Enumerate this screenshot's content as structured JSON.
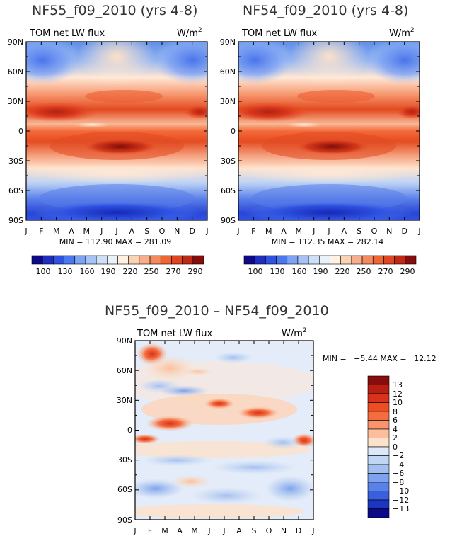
{
  "charts": [
    {
      "title": "NF55_f09_2010 (yrs 4-8)",
      "field": "TOM net LW flux",
      "units": "W/m",
      "units_sup": "2",
      "stats": "MIN = 112.90 MAX = 281.09"
    },
    {
      "title": "NF54_f09_2010 (yrs 4-8)",
      "field": "TOM net LW flux",
      "units": "W/m",
      "units_sup": "2",
      "stats": "MIN = 112.35 MAX = 282.14"
    },
    {
      "title": "NF55_f09_2010 – NF54_f09_2010",
      "field": "TOM net LW flux",
      "units": "W/m",
      "units_sup": "2",
      "stats": "MIN =   −5.44 MAX =   12.12"
    }
  ],
  "chart_data": [
    {
      "type": "heatmap",
      "title": "NF55_f09_2010 (yrs 4-8)",
      "subtitle": "TOM net LW flux",
      "units": "W/m2",
      "x_ticks": [
        "J",
        "F",
        "M",
        "A",
        "M",
        "J",
        "J",
        "A",
        "S",
        "O",
        "N",
        "D",
        "J"
      ],
      "y_ticks": [
        "90N",
        "60N",
        "30N",
        "0",
        "30S",
        "60S",
        "90S"
      ],
      "ylim": [
        -90,
        90
      ],
      "colorbar_levels": [
        100,
        130,
        160,
        190,
        220,
        250,
        270,
        290
      ],
      "min": 112.9,
      "max": 281.09
    },
    {
      "type": "heatmap",
      "title": "NF54_f09_2010 (yrs 4-8)",
      "subtitle": "TOM net LW flux",
      "units": "W/m2",
      "x_ticks": [
        "J",
        "F",
        "M",
        "A",
        "M",
        "J",
        "J",
        "A",
        "S",
        "O",
        "N",
        "D",
        "J"
      ],
      "y_ticks": [
        "90N",
        "60N",
        "30N",
        "0",
        "30S",
        "60S",
        "90S"
      ],
      "ylim": [
        -90,
        90
      ],
      "colorbar_levels": [
        100,
        130,
        160,
        190,
        220,
        250,
        270,
        290
      ],
      "min": 112.35,
      "max": 282.14
    },
    {
      "type": "heatmap",
      "title": "NF55_f09_2010 – NF54_f09_2010",
      "subtitle": "TOM net LW flux",
      "units": "W/m2",
      "x_ticks": [
        "J",
        "F",
        "M",
        "A",
        "M",
        "J",
        "J",
        "A",
        "S",
        "O",
        "N",
        "D",
        "J"
      ],
      "y_ticks": [
        "90N",
        "60N",
        "30N",
        "0",
        "30S",
        "60S",
        "90S"
      ],
      "ylim": [
        -90,
        90
      ],
      "colorbar_levels": [
        "13",
        "12",
        "10",
        "8",
        "6",
        "4",
        "2",
        "0",
        "−2",
        "−4",
        "−6",
        "−8",
        "−10",
        "−12",
        "−13"
      ],
      "min": -5.44,
      "max": 12.12
    }
  ],
  "colors": {
    "abs_scale": [
      "#0c0a8a",
      "#1f2ec0",
      "#2f52e0",
      "#4a78f0",
      "#7ea3f5",
      "#a7c2f6",
      "#cde0f7",
      "#e9f1f9",
      "#fff2e0",
      "#fcd3b2",
      "#f8ae8a",
      "#f58a5f",
      "#ef6633",
      "#e04620",
      "#c02a14",
      "#870d0d"
    ],
    "diff_scale": [
      "#870d0d",
      "#b81f10",
      "#d8331a",
      "#ee4d24",
      "#f56c3e",
      "#f8956b",
      "#fbbf9c",
      "#fde2cb",
      "#dde9f8",
      "#c1d5f4",
      "#a3bff1",
      "#7ea2ec",
      "#5a82e6",
      "#3a5fdc",
      "#1c35c2",
      "#0a0a8a"
    ]
  }
}
